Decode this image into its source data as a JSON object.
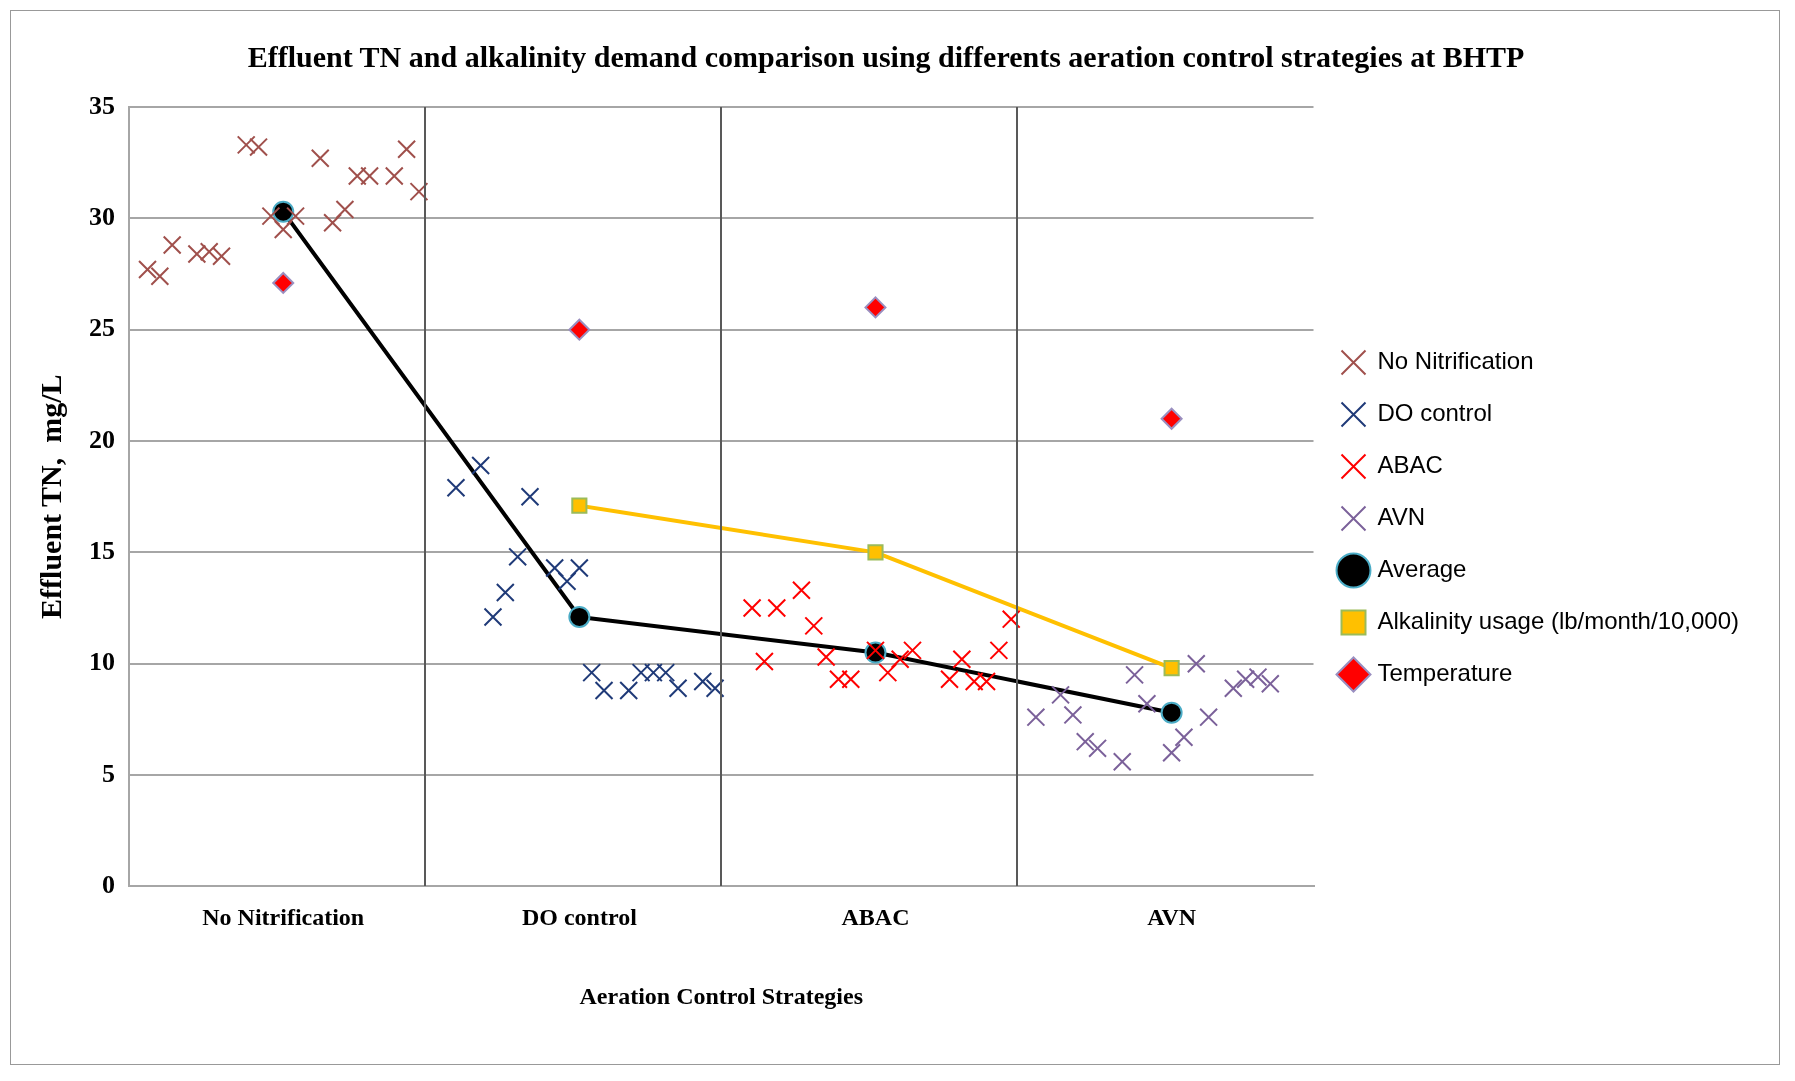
{
  "chart_data": {
    "type": "scatter",
    "title": "Effluent TN and alkalinity demand comparison using differents aeration control strategies at BHTP",
    "xlabel": "Aeration Control Strategies",
    "ylabel": "Effluent TN,  mg/L",
    "categories": [
      null,
      null,
      null,
      null,
      null,
      null,
      null,
      null,
      null,
      null,
      null,
      null,
      "No Nitrification",
      null,
      null,
      null,
      null,
      null,
      null,
      null,
      null,
      null,
      null,
      null,
      null,
      null,
      null,
      null,
      null,
      null,
      null,
      null,
      null,
      null,
      null,
      null,
      "DO control",
      null,
      null,
      null,
      null,
      null,
      null,
      null,
      null,
      null,
      null,
      null,
      null,
      null,
      null,
      null,
      null,
      null,
      null,
      null,
      null,
      null,
      null,
      null,
      "ABAC",
      null,
      null,
      null,
      null,
      null,
      null,
      null,
      null,
      null,
      null,
      null,
      null,
      null,
      null,
      null,
      null,
      null,
      null,
      null,
      null,
      null,
      null,
      null,
      "AVN",
      null,
      null,
      null,
      null,
      null,
      null,
      null,
      null,
      null,
      null,
      null
    ],
    "ylim": [
      0,
      35
    ],
    "yticks": [
      0,
      5,
      10,
      15,
      20,
      25,
      30,
      35
    ],
    "grid": "y",
    "legend": "right",
    "series": [
      {
        "name": "No Nitrification",
        "marker": "cross",
        "color": "#a0504c",
        "values": [
          null,
          27.7,
          27.4,
          28.8,
          null,
          28.4,
          28.5,
          28.3,
          null,
          33.3,
          33.2,
          30.1,
          29.5,
          30.1,
          null,
          32.7,
          29.8,
          30.4,
          31.9,
          31.9,
          null,
          31.9,
          33.1,
          31.2,
          null,
          null,
          null,
          null,
          null,
          null,
          null,
          null,
          null,
          null,
          null,
          null,
          null,
          null,
          null,
          null,
          null,
          null,
          null,
          null,
          null,
          null,
          null,
          null,
          null,
          null,
          null,
          null,
          null,
          null,
          null,
          null,
          null,
          null,
          null,
          null,
          null,
          null,
          null,
          null,
          null,
          null,
          null,
          null,
          null,
          null,
          null,
          null,
          null,
          null,
          null,
          null,
          null,
          null,
          null,
          null,
          null,
          null,
          null,
          null,
          null,
          null,
          null,
          null,
          null,
          null,
          null,
          null,
          null,
          null,
          null,
          null
        ]
      },
      {
        "name": "DO control",
        "marker": "cross",
        "color": "#1f3a78",
        "values": [
          null,
          null,
          null,
          null,
          null,
          null,
          null,
          null,
          null,
          null,
          null,
          null,
          null,
          null,
          null,
          null,
          null,
          null,
          null,
          null,
          null,
          null,
          null,
          null,
          null,
          null,
          17.9,
          null,
          18.9,
          12.1,
          13.2,
          14.8,
          17.5,
          null,
          14.3,
          13.7,
          14.3,
          9.6,
          8.8,
          null,
          8.8,
          9.6,
          9.6,
          9.6,
          8.9,
          null,
          9.2,
          8.9,
          null,
          null,
          null,
          null,
          null,
          null,
          null,
          null,
          null,
          null,
          null,
          null,
          null,
          null,
          null,
          null,
          null,
          null,
          null,
          null,
          null,
          null,
          null,
          null,
          null,
          null,
          null,
          null,
          null,
          null,
          null,
          null,
          null,
          null,
          null,
          null,
          null,
          null,
          null,
          null,
          null,
          null,
          null,
          null,
          null,
          null,
          null,
          null
        ]
      },
      {
        "name": "ABAC",
        "marker": "cross",
        "color": "#ff0000",
        "values": [
          null,
          null,
          null,
          null,
          null,
          null,
          null,
          null,
          null,
          null,
          null,
          null,
          null,
          null,
          null,
          null,
          null,
          null,
          null,
          null,
          null,
          null,
          null,
          null,
          null,
          null,
          null,
          null,
          null,
          null,
          null,
          null,
          null,
          null,
          null,
          null,
          null,
          null,
          null,
          null,
          null,
          null,
          null,
          null,
          null,
          null,
          null,
          null,
          null,
          null,
          12.5,
          10.1,
          12.5,
          null,
          13.3,
          11.7,
          10.3,
          9.3,
          9.3,
          null,
          10.6,
          9.6,
          10.2,
          10.6,
          null,
          null,
          9.3,
          10.2,
          9.2,
          9.2,
          10.6,
          12,
          null,
          null,
          null,
          null,
          null,
          null,
          null,
          null,
          null,
          null,
          null,
          null,
          null,
          null,
          null,
          null,
          null,
          null,
          null,
          null,
          null,
          null,
          null,
          null
        ]
      },
      {
        "name": "AVN",
        "marker": "cross",
        "color": "#7b619a",
        "values": [
          null,
          null,
          null,
          null,
          null,
          null,
          null,
          null,
          null,
          null,
          null,
          null,
          null,
          null,
          null,
          null,
          null,
          null,
          null,
          null,
          null,
          null,
          null,
          null,
          null,
          null,
          null,
          null,
          null,
          null,
          null,
          null,
          null,
          null,
          null,
          null,
          null,
          null,
          null,
          null,
          null,
          null,
          null,
          null,
          null,
          null,
          null,
          null,
          null,
          null,
          null,
          null,
          null,
          null,
          null,
          null,
          null,
          null,
          null,
          null,
          null,
          null,
          null,
          null,
          null,
          null,
          null,
          null,
          null,
          null,
          null,
          null,
          null,
          7.6,
          null,
          8.6,
          7.7,
          6.5,
          6.2,
          null,
          5.6,
          9.5,
          8.2,
          null,
          6,
          6.7,
          10,
          7.6,
          null,
          8.9,
          9.3,
          9.4,
          9.1,
          null,
          null,
          null
        ]
      },
      {
        "name": "Average",
        "type": "line",
        "marker": "circle",
        "color": "#000000",
        "values": [
          null,
          null,
          null,
          null,
          null,
          null,
          null,
          null,
          null,
          null,
          null,
          null,
          30.3,
          null,
          null,
          null,
          null,
          null,
          null,
          null,
          null,
          null,
          null,
          null,
          null,
          null,
          null,
          null,
          null,
          null,
          null,
          null,
          null,
          null,
          null,
          null,
          12.1,
          null,
          null,
          null,
          null,
          null,
          null,
          null,
          null,
          null,
          null,
          null,
          null,
          null,
          null,
          null,
          null,
          null,
          null,
          null,
          null,
          null,
          null,
          null,
          10.5,
          null,
          null,
          null,
          null,
          null,
          null,
          null,
          null,
          null,
          null,
          null,
          null,
          null,
          null,
          null,
          null,
          null,
          null,
          null,
          null,
          null,
          null,
          null,
          7.8,
          null,
          null,
          null,
          null,
          null,
          null,
          null,
          null,
          null,
          null,
          null
        ]
      },
      {
        "name": "Alkalinity usage (lb/month/10,000)",
        "type": "line",
        "marker": "square",
        "color": "#ffc000",
        "values": [
          null,
          null,
          null,
          null,
          null,
          null,
          null,
          null,
          null,
          null,
          null,
          null,
          null,
          null,
          null,
          null,
          null,
          null,
          null,
          null,
          null,
          null,
          null,
          null,
          null,
          null,
          null,
          null,
          null,
          null,
          null,
          null,
          null,
          null,
          null,
          null,
          17.1,
          null,
          null,
          null,
          null,
          null,
          null,
          null,
          null,
          null,
          null,
          null,
          null,
          null,
          null,
          null,
          null,
          null,
          null,
          null,
          null,
          null,
          null,
          null,
          15,
          null,
          null,
          null,
          null,
          null,
          null,
          null,
          null,
          null,
          null,
          null,
          null,
          null,
          null,
          null,
          null,
          null,
          null,
          null,
          null,
          null,
          null,
          null,
          9.8,
          null,
          null,
          null,
          null,
          null,
          null,
          null,
          null,
          null,
          null,
          null
        ]
      },
      {
        "name": "Temperature",
        "marker": "diamond",
        "color": "#ff0000",
        "values": [
          null,
          null,
          null,
          null,
          null,
          null,
          null,
          null,
          null,
          null,
          null,
          null,
          27.1,
          null,
          null,
          null,
          null,
          null,
          null,
          null,
          null,
          null,
          null,
          null,
          null,
          null,
          null,
          null,
          null,
          null,
          null,
          null,
          null,
          null,
          null,
          null,
          25,
          null,
          null,
          null,
          null,
          null,
          null,
          null,
          null,
          null,
          null,
          null,
          null,
          null,
          null,
          null,
          null,
          null,
          null,
          null,
          null,
          null,
          null,
          null,
          26,
          null,
          null,
          null,
          null,
          null,
          null,
          null,
          null,
          null,
          null,
          null,
          null,
          null,
          null,
          null,
          null,
          null,
          null,
          null,
          null,
          null,
          null,
          null,
          21,
          null,
          null,
          null,
          null,
          null,
          null,
          null,
          null,
          null,
          null,
          null
        ]
      }
    ]
  }
}
